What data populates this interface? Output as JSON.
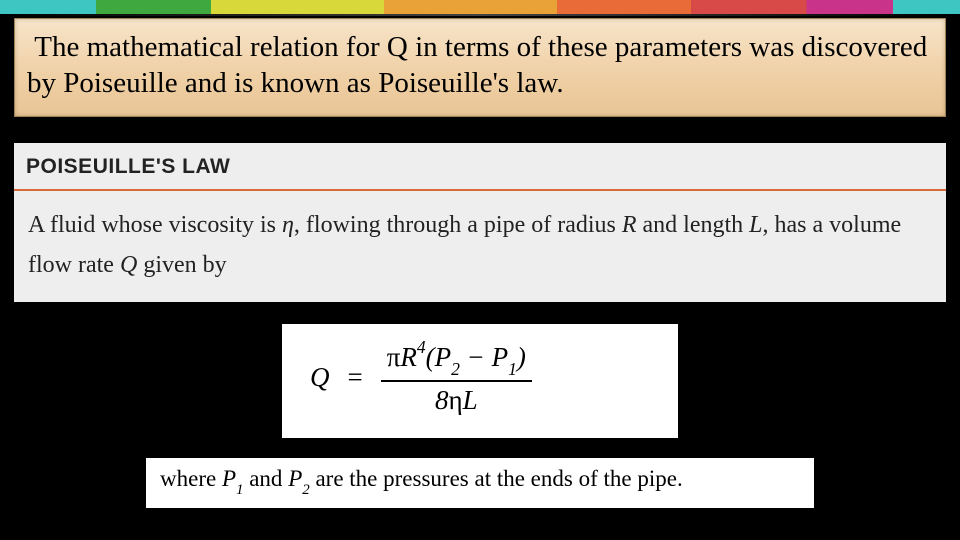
{
  "rainbow_colors": [
    "#3ec7c2",
    "#3fa83f",
    "#d8d83a",
    "#e8a238",
    "#e86b38",
    "#d84a47",
    "#c9338a",
    "#3ec7c2"
  ],
  "intro": {
    "text": " The mathematical relation for Q in terms of these parameters was discovered by Poiseuille and is known as Poiseuille's law.",
    "bg_gradient": [
      "#f7e4c9",
      "#efcfa4",
      "#e9c596"
    ],
    "font_size": 29
  },
  "law": {
    "title": "POISEUILLE'S LAW",
    "title_rule_color": "#d86b3a",
    "text_prefix": "A fluid whose viscosity is ",
    "eta": "η",
    "text_mid1": ", flowing through a pipe of radius ",
    "R": "R",
    "text_mid2": " and length ",
    "L": "L",
    "text_mid3": ", has a volume flow rate ",
    "Q": "Q",
    "text_suffix": " given by",
    "box_bg": "#eeeeee",
    "font_size": 24
  },
  "formula": {
    "lhs": "Q",
    "equals": "=",
    "numerator": "πR⁴(P₂ − P₁)",
    "denominator": "8ηL",
    "bg": "#ffffff",
    "font_size": 27
  },
  "where": {
    "text_prefix": "where ",
    "P1": "P",
    "sub1": "1",
    "and": " and ",
    "P2": "P",
    "sub2": "2",
    "text_suffix": " are the pressures at the ends of the pipe.",
    "bg": "#ffffff",
    "font_size": 23
  }
}
